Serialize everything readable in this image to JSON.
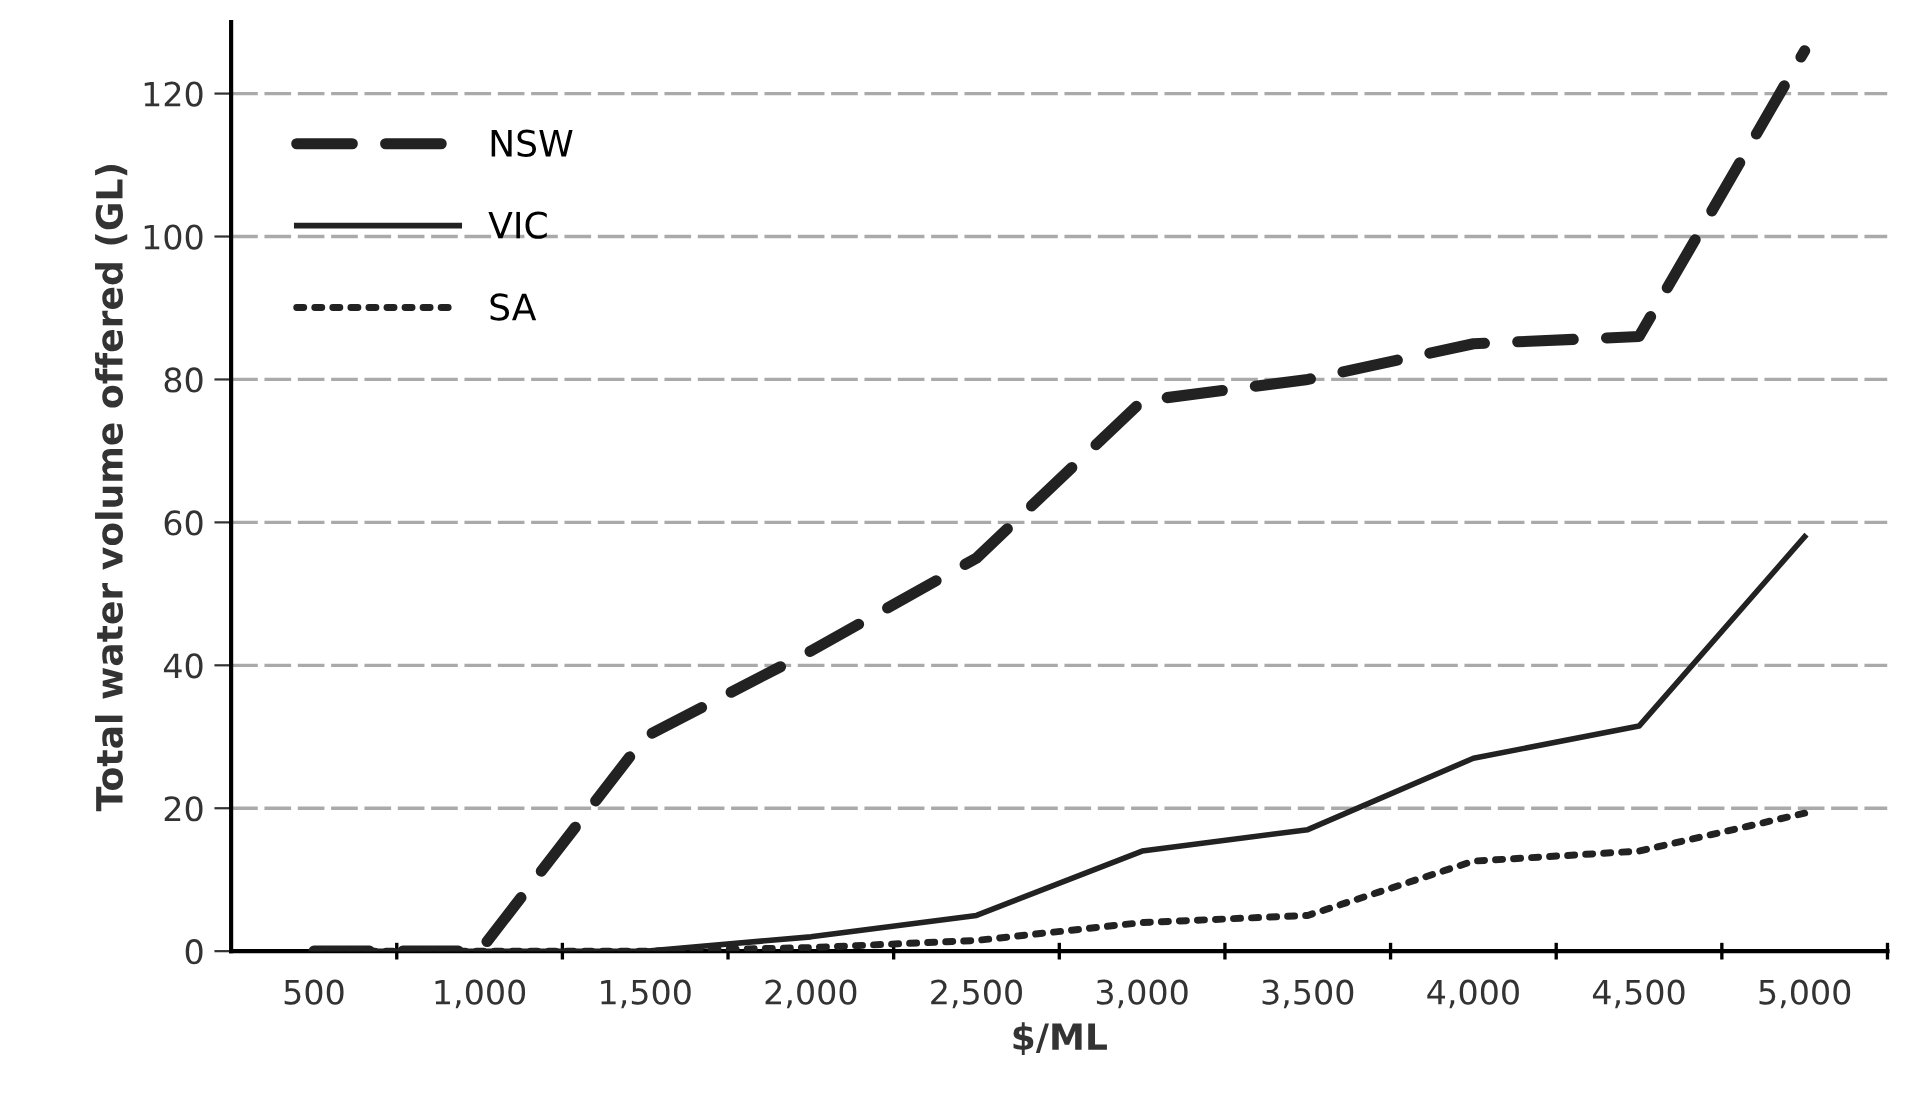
{
  "chart_data": {
    "type": "line",
    "xlabel": "$/ML",
    "ylabel": "Total water volume offered (GL)",
    "categories": [
      "500",
      "1,000",
      "1,500",
      "2,000",
      "2,500",
      "3,000",
      "3,500",
      "4,000",
      "4,500",
      "5,000"
    ],
    "series": [
      {
        "name": "NSW",
        "color": "#222222",
        "line_style": "dashed",
        "values": [
          0,
          0,
          30,
          42,
          55,
          77,
          80,
          85,
          86,
          126
        ]
      },
      {
        "name": "VIC",
        "color": "#222222",
        "line_style": "solid",
        "values": [
          0,
          0,
          0,
          2,
          5,
          14,
          17,
          27,
          31.5,
          58
        ]
      },
      {
        "name": "SA",
        "color": "#222222",
        "line_style": "dotted",
        "values": [
          0,
          0,
          0,
          0.5,
          1.5,
          4,
          5,
          12.6,
          14,
          19.3
        ]
      }
    ],
    "ylim": [
      0,
      130
    ],
    "yticks": [
      0,
      20,
      40,
      60,
      80,
      100,
      120
    ],
    "grid": "y",
    "legend": "top left"
  }
}
